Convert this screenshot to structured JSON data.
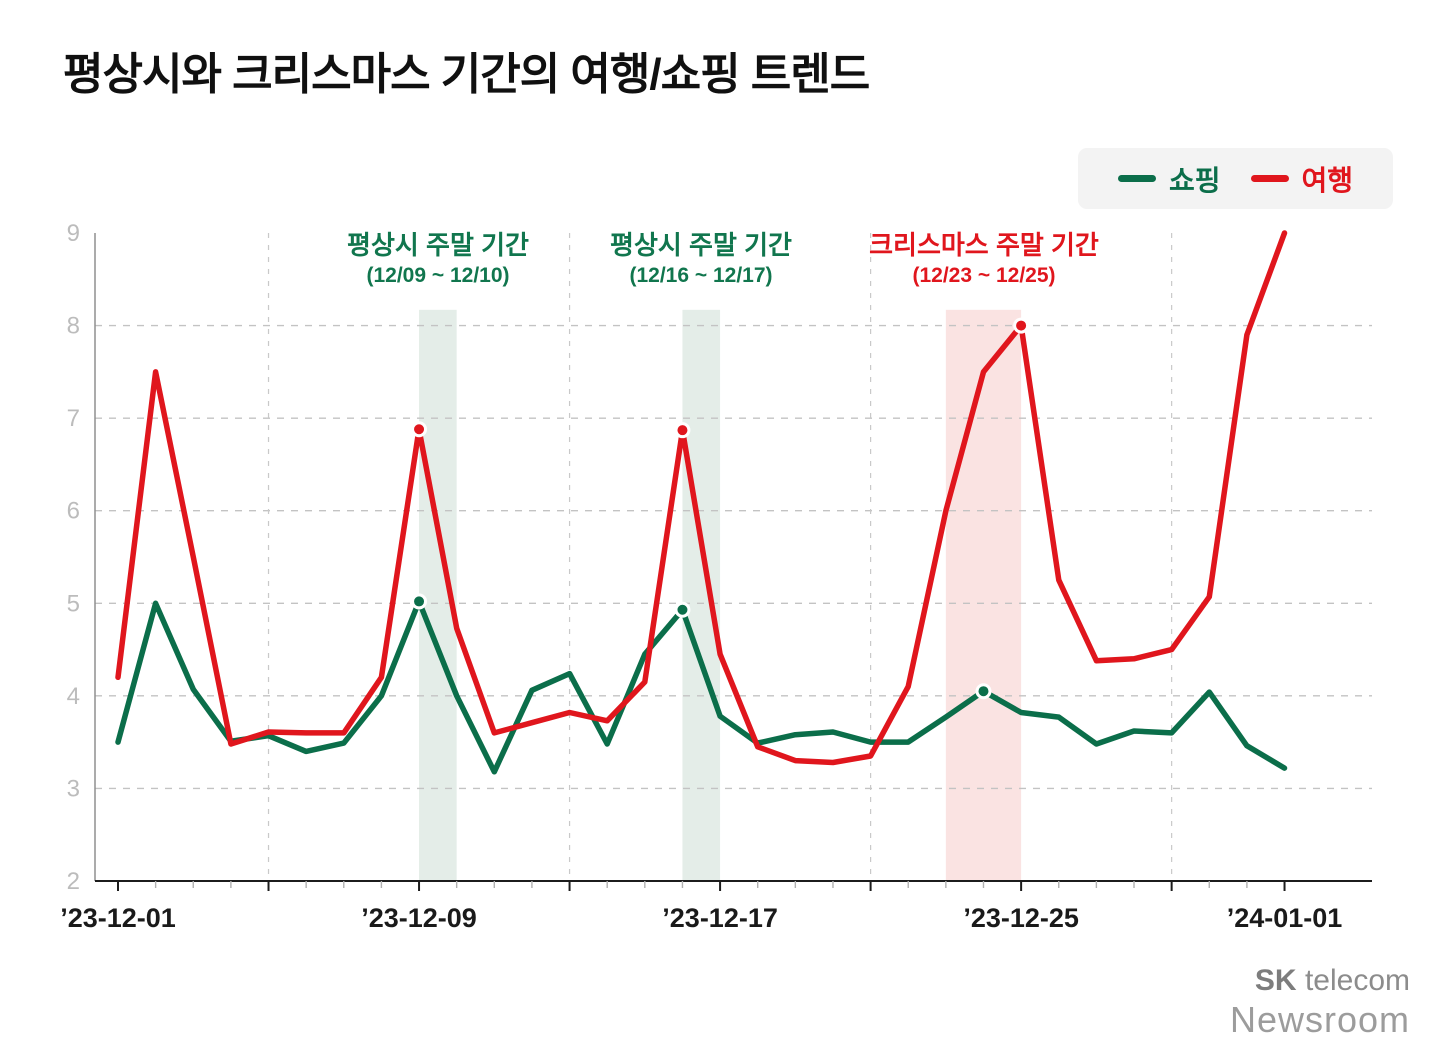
{
  "title": "평상시와 크리스마스 기간의 여행/쇼핑 트렌드",
  "legend": {
    "items": [
      {
        "label": "쇼핑",
        "color": "#0b6e4a"
      },
      {
        "label": "여행",
        "color": "#e0161d"
      }
    ]
  },
  "annotations": [
    {
      "line1": "평상시 주말 기간",
      "line2": "(12/09 ~ 12/10)",
      "color": "#11764e"
    },
    {
      "line1": "평상시 주말 기간",
      "line2": "(12/16 ~ 12/17)",
      "color": "#11764e"
    },
    {
      "line1": "크리스마스 주말 기간",
      "line2": "(12/23 ~ 12/25)",
      "color": "#e0161d"
    }
  ],
  "logo": {
    "brand_bold": "SK",
    "brand_rest": " telecom",
    "sub": "Newsroom"
  },
  "chart_data": {
    "type": "line",
    "x_unit": "day",
    "x_tick_labels": [
      {
        "day": 0,
        "label": "’23-12-01"
      },
      {
        "day": 8,
        "label": "’23-12-09"
      },
      {
        "day": 16,
        "label": "’23-12-17"
      },
      {
        "day": 24,
        "label": "’23-12-25"
      },
      {
        "day": 31,
        "label": "’24-01-01"
      }
    ],
    "ylim": [
      2,
      9
    ],
    "yticks": [
      2,
      3,
      4,
      5,
      6,
      7,
      8,
      9
    ],
    "y_gridline_values": [
      3,
      4,
      5,
      6,
      7,
      8
    ],
    "x_gridline_days": [
      4,
      12,
      20,
      28
    ],
    "grid": "dashed",
    "legend_position": "top-right",
    "bands": [
      {
        "from_day": 8,
        "to_day": 9,
        "color": "#e4ede8",
        "meaning": "평상시 주말 기간 (12/09 ~ 12/10)"
      },
      {
        "from_day": 15,
        "to_day": 16,
        "color": "#e4ede8",
        "meaning": "평상시 주말 기간 (12/16 ~ 12/17)"
      },
      {
        "from_day": 22,
        "to_day": 24,
        "color": "#fae3e2",
        "meaning": "크리스마스 주말 기간 (12/23 ~ 12/25)"
      }
    ],
    "series": [
      {
        "name": "쇼핑",
        "color": "#0b6e4a",
        "marker_days": [
          8,
          15,
          23
        ],
        "values": [
          3.5,
          5.0,
          4.07,
          3.51,
          3.57,
          3.4,
          3.49,
          4.0,
          5.02,
          4.0,
          3.18,
          4.06,
          4.24,
          3.48,
          4.45,
          4.93,
          3.78,
          3.49,
          3.58,
          3.61,
          3.5,
          3.5,
          3.77,
          4.05,
          3.82,
          3.77,
          3.48,
          3.62,
          3.6,
          4.04,
          3.46,
          3.22
        ]
      },
      {
        "name": "여행",
        "color": "#e0161d",
        "marker_days": [
          8,
          15,
          24
        ],
        "values": [
          4.2,
          7.5,
          5.5,
          3.48,
          3.61,
          3.6,
          3.6,
          4.2,
          6.88,
          4.73,
          3.6,
          3.71,
          3.82,
          3.73,
          4.15,
          6.87,
          4.45,
          3.45,
          3.3,
          3.28,
          3.35,
          4.1,
          6.0,
          7.5,
          8.0,
          5.25,
          4.38,
          4.4,
          4.5,
          5.07,
          7.9,
          9.0
        ]
      }
    ]
  }
}
